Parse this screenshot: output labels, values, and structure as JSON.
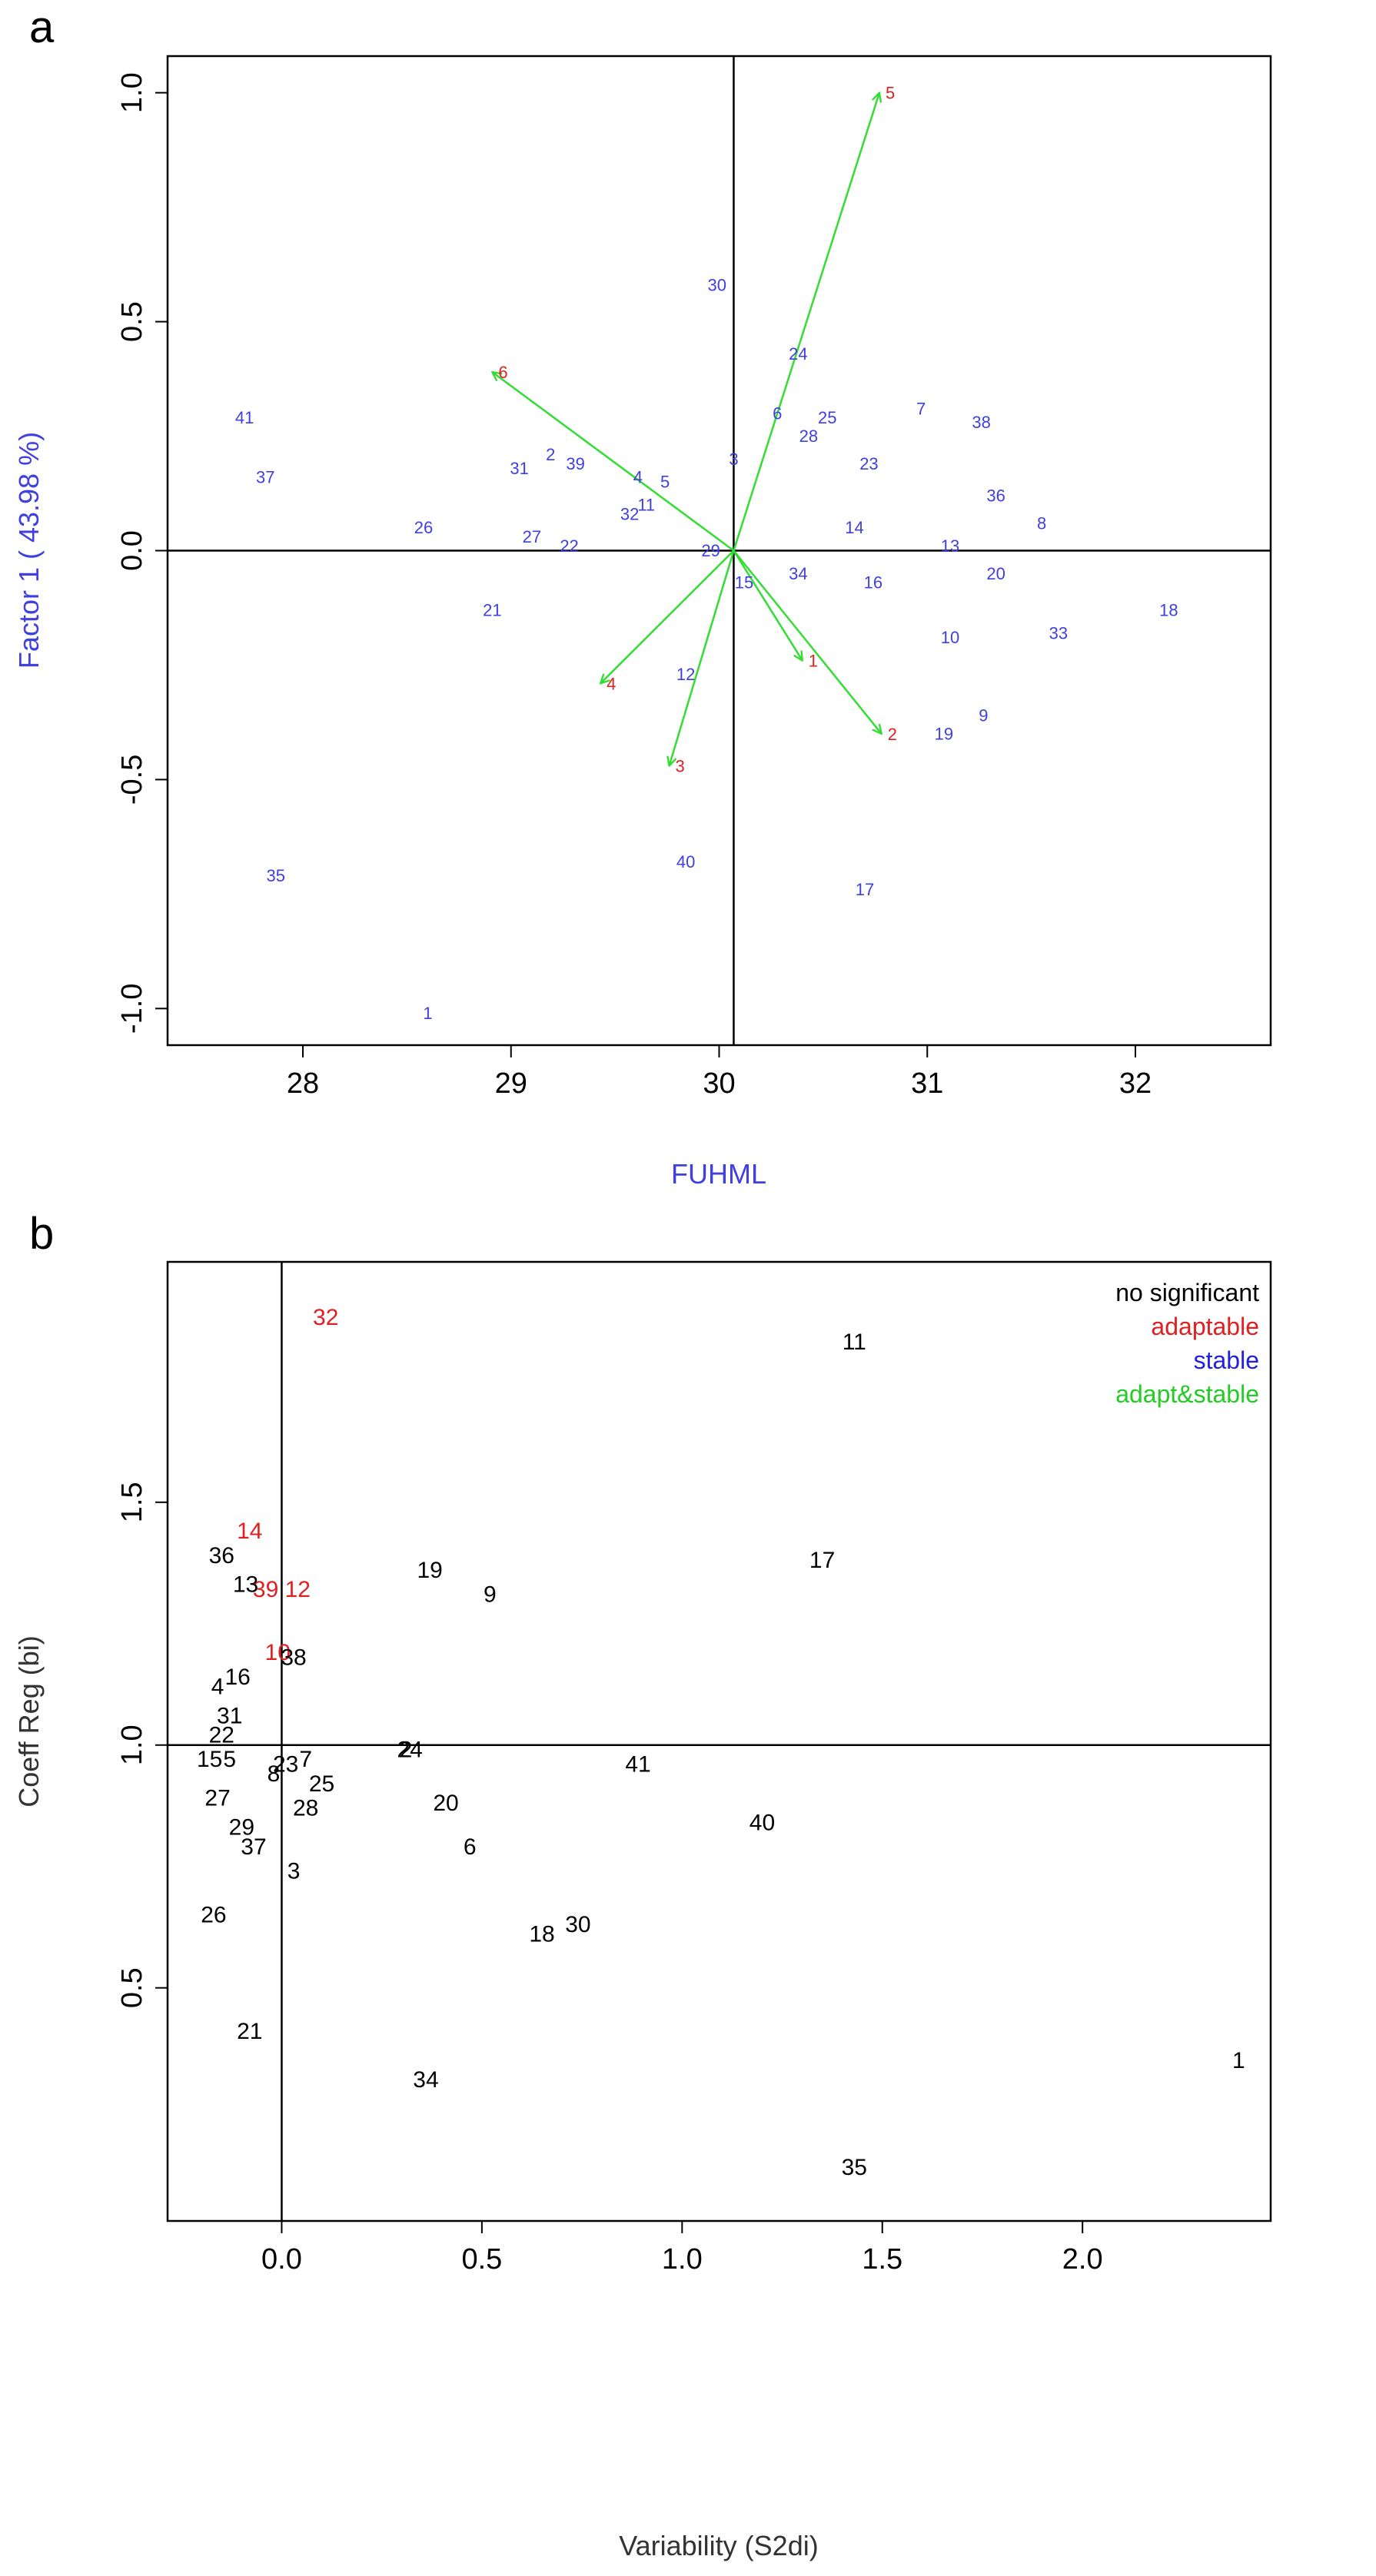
{
  "chart_data": [
    {
      "panel": "a",
      "type": "scatter",
      "title": "",
      "xlabel": "FUHML",
      "ylabel": "Factor 1 ( 43.98 %)",
      "xlim": [
        27.35,
        32.65
      ],
      "ylim": [
        -1.08,
        1.08
      ],
      "xticks": [
        28,
        29,
        30,
        31,
        32
      ],
      "xtick_labels": [
        "28",
        "29",
        "30",
        "31",
        "32"
      ],
      "yticks": [
        -1.0,
        -0.5,
        0.0,
        0.5,
        1.0
      ],
      "ytick_labels": [
        "-1.0",
        "-0.5",
        "0.0",
        "0.5",
        "1.0"
      ],
      "reference_lines": {
        "x": 30.07,
        "y": 0.0
      },
      "colors": {
        "points": "#4040e0",
        "arrows": "#33dd33",
        "arrow_labels": "#e02020",
        "axes": "#000000",
        "xlabel": "#4040e0",
        "ylabel": "#4040e0"
      },
      "points": [
        {
          "label": "41",
          "x": 27.72,
          "y": 0.29
        },
        {
          "label": "37",
          "x": 27.82,
          "y": 0.16
        },
        {
          "label": "35",
          "x": 27.87,
          "y": -0.71
        },
        {
          "label": "26",
          "x": 28.58,
          "y": 0.05
        },
        {
          "label": "21",
          "x": 28.91,
          "y": -0.13
        },
        {
          "label": "1",
          "x": 28.6,
          "y": -1.01
        },
        {
          "label": "31",
          "x": 29.04,
          "y": 0.18
        },
        {
          "label": "2",
          "x": 29.19,
          "y": 0.21
        },
        {
          "label": "39",
          "x": 29.31,
          "y": 0.19
        },
        {
          "label": "27",
          "x": 29.1,
          "y": 0.03
        },
        {
          "label": "22",
          "x": 29.28,
          "y": 0.01
        },
        {
          "label": "4",
          "x": 29.61,
          "y": 0.16
        },
        {
          "label": "5",
          "x": 29.74,
          "y": 0.15
        },
        {
          "label": "32",
          "x": 29.57,
          "y": 0.08
        },
        {
          "label": "11",
          "x": 29.65,
          "y": 0.1
        },
        {
          "label": "12",
          "x": 29.84,
          "y": -0.27
        },
        {
          "label": "40",
          "x": 29.84,
          "y": -0.68
        },
        {
          "label": "29",
          "x": 29.96,
          "y": 0.0
        },
        {
          "label": "30",
          "x": 29.99,
          "y": 0.58
        },
        {
          "label": "3",
          "x": 30.07,
          "y": 0.2
        },
        {
          "label": "15",
          "x": 30.12,
          "y": -0.07
        },
        {
          "label": "24",
          "x": 30.38,
          "y": 0.43
        },
        {
          "label": "6",
          "x": 30.28,
          "y": 0.3
        },
        {
          "label": "25",
          "x": 30.52,
          "y": 0.29
        },
        {
          "label": "28",
          "x": 30.43,
          "y": 0.25
        },
        {
          "label": "34",
          "x": 30.38,
          "y": -0.05
        },
        {
          "label": "14",
          "x": 30.65,
          "y": 0.05
        },
        {
          "label": "23",
          "x": 30.72,
          "y": 0.19
        },
        {
          "label": "16",
          "x": 30.74,
          "y": -0.07
        },
        {
          "label": "17",
          "x": 30.7,
          "y": -0.74
        },
        {
          "label": "7",
          "x": 30.97,
          "y": 0.31
        },
        {
          "label": "13",
          "x": 31.11,
          "y": 0.01
        },
        {
          "label": "10",
          "x": 31.11,
          "y": -0.19
        },
        {
          "label": "19",
          "x": 31.08,
          "y": -0.4
        },
        {
          "label": "38",
          "x": 31.26,
          "y": 0.28
        },
        {
          "label": "36",
          "x": 31.33,
          "y": 0.12
        },
        {
          "label": "20",
          "x": 31.33,
          "y": -0.05
        },
        {
          "label": "9",
          "x": 31.27,
          "y": -0.36
        },
        {
          "label": "8",
          "x": 31.55,
          "y": 0.06
        },
        {
          "label": "33",
          "x": 31.63,
          "y": -0.18
        },
        {
          "label": "18",
          "x": 32.16,
          "y": -0.13
        }
      ],
      "arrows": [
        {
          "label": "5",
          "x": 30.77,
          "y": 1.0
        },
        {
          "label": "6",
          "x": 28.91,
          "y": 0.39
        },
        {
          "label": "4",
          "x": 29.43,
          "y": -0.29
        },
        {
          "label": "3",
          "x": 29.76,
          "y": -0.47
        },
        {
          "label": "1",
          "x": 30.4,
          "y": -0.24
        },
        {
          "label": "2",
          "x": 30.78,
          "y": -0.4
        }
      ]
    },
    {
      "panel": "b",
      "type": "scatter",
      "title": "",
      "xlabel": "Variability (S2di)",
      "ylabel": "Coeff Reg (bi)",
      "xlim": [
        -0.285,
        2.47
      ],
      "ylim": [
        0.02,
        1.995
      ],
      "xticks": [
        0.0,
        0.5,
        1.0,
        1.5,
        2.0
      ],
      "xtick_labels": [
        "0.0",
        "0.5",
        "1.0",
        "1.5",
        "2.0"
      ],
      "yticks": [
        0.5,
        1.0,
        1.5
      ],
      "ytick_labels": [
        "0.5",
        "1.0",
        "1.5"
      ],
      "reference_lines": {
        "x": 0.0,
        "y": 1.0
      },
      "legend": {
        "position": "top-right",
        "entries": [
          {
            "label": "no significant",
            "color": "#000000"
          },
          {
            "label": "adaptable",
            "color": "#e02020"
          },
          {
            "label": "stable",
            "color": "#2020e0"
          },
          {
            "label": "adapt&stable",
            "color": "#22cc22"
          }
        ]
      },
      "points": [
        {
          "label": "32",
          "x": 0.11,
          "y": 1.88,
          "class": "adaptable"
        },
        {
          "label": "14",
          "x": -0.08,
          "y": 1.44,
          "class": "adaptable"
        },
        {
          "label": "39",
          "x": -0.04,
          "y": 1.32,
          "class": "adaptable"
        },
        {
          "label": "12",
          "x": 0.04,
          "y": 1.32,
          "class": "adaptable"
        },
        {
          "label": "10",
          "x": -0.01,
          "y": 1.19,
          "class": "adaptable"
        },
        {
          "label": "11",
          "x": 1.43,
          "y": 1.83,
          "class": "no significant"
        },
        {
          "label": "17",
          "x": 1.35,
          "y": 1.38,
          "class": "no significant"
        },
        {
          "label": "36",
          "x": -0.15,
          "y": 1.39,
          "class": "no significant"
        },
        {
          "label": "13",
          "x": -0.09,
          "y": 1.33,
          "class": "no significant"
        },
        {
          "label": "19",
          "x": 0.37,
          "y": 1.36,
          "class": "no significant"
        },
        {
          "label": "9",
          "x": 0.52,
          "y": 1.31,
          "class": "no significant"
        },
        {
          "label": "38",
          "x": 0.03,
          "y": 1.18,
          "class": "no significant"
        },
        {
          "label": "16",
          "x": -0.11,
          "y": 1.14,
          "class": "no significant"
        },
        {
          "label": "4",
          "x": -0.16,
          "y": 1.12,
          "class": "no significant"
        },
        {
          "label": "31",
          "x": -0.13,
          "y": 1.06,
          "class": "no significant"
        },
        {
          "label": "22",
          "x": -0.15,
          "y": 1.02,
          "class": "no significant"
        },
        {
          "label": "15",
          "x": -0.18,
          "y": 0.97,
          "class": "no significant"
        },
        {
          "label": "5",
          "x": -0.13,
          "y": 0.97,
          "class": "no significant"
        },
        {
          "label": "23",
          "x": 0.01,
          "y": 0.96,
          "class": "no significant"
        },
        {
          "label": "7",
          "x": 0.06,
          "y": 0.97,
          "class": "no significant"
        },
        {
          "label": "8",
          "x": -0.02,
          "y": 0.94,
          "class": "no significant"
        },
        {
          "label": "25",
          "x": 0.1,
          "y": 0.92,
          "class": "no significant"
        },
        {
          "label": "24",
          "x": 0.32,
          "y": 0.99,
          "class": "no significant"
        },
        {
          "label": "2",
          "x": 0.31,
          "y": 0.99,
          "class": "no significant"
        },
        {
          "label": "41",
          "x": 0.89,
          "y": 0.96,
          "class": "no significant"
        },
        {
          "label": "27",
          "x": -0.16,
          "y": 0.89,
          "class": "no significant"
        },
        {
          "label": "28",
          "x": 0.06,
          "y": 0.87,
          "class": "no significant"
        },
        {
          "label": "20",
          "x": 0.41,
          "y": 0.88,
          "class": "no significant"
        },
        {
          "label": "40",
          "x": 1.2,
          "y": 0.84,
          "class": "no significant"
        },
        {
          "label": "29",
          "x": -0.1,
          "y": 0.83,
          "class": "no significant"
        },
        {
          "label": "37",
          "x": -0.07,
          "y": 0.79,
          "class": "no significant"
        },
        {
          "label": "6",
          "x": 0.47,
          "y": 0.79,
          "class": "no significant"
        },
        {
          "label": "3",
          "x": 0.03,
          "y": 0.74,
          "class": "no significant"
        },
        {
          "label": "30",
          "x": 0.74,
          "y": 0.63,
          "class": "no significant"
        },
        {
          "label": "18",
          "x": 0.65,
          "y": 0.61,
          "class": "no significant"
        },
        {
          "label": "26",
          "x": -0.17,
          "y": 0.65,
          "class": "no significant"
        },
        {
          "label": "21",
          "x": -0.08,
          "y": 0.41,
          "class": "no significant"
        },
        {
          "label": "34",
          "x": 0.36,
          "y": 0.31,
          "class": "no significant"
        },
        {
          "label": "1",
          "x": 2.39,
          "y": 0.35,
          "class": "no significant"
        },
        {
          "label": "35",
          "x": 1.43,
          "y": 0.13,
          "class": "no significant"
        }
      ]
    }
  ]
}
